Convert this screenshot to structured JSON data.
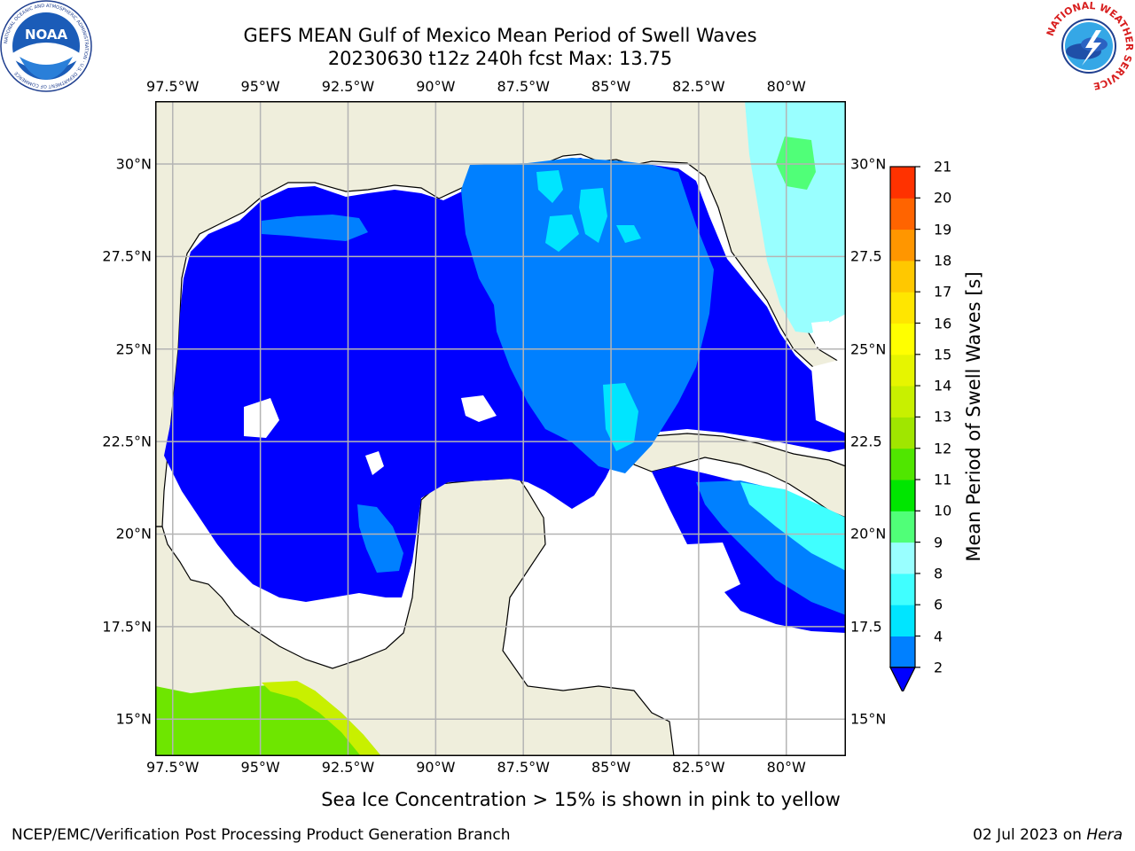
{
  "title": {
    "line1": "GEFS MEAN Gulf of Mexico Mean Period of Swell Waves",
    "line2": "20230630 t12z 240h fcst   Max: 13.75"
  },
  "axes": {
    "lon_labels": [
      "97.5°W",
      "95°W",
      "92.5°W",
      "90°W",
      "87.5°W",
      "85°W",
      "82.5°W",
      "80°W"
    ],
    "lat_labels_left": [
      "30°N",
      "27.5°N",
      "25°N",
      "22.5°N",
      "20°N",
      "17.5°N",
      "15°N"
    ],
    "lat_labels_right": [
      "30°N",
      "27.5",
      "25°N",
      "22.5",
      "20°N",
      "17.5",
      "15°N"
    ],
    "lon_values": [
      -97.5,
      -95,
      -92.5,
      -90,
      -87.5,
      -85,
      -82.5,
      -80
    ],
    "lat_values": [
      30,
      27.5,
      25,
      22.5,
      20,
      17.5,
      15
    ],
    "lon_range": [
      -98,
      -78.3
    ],
    "lat_range": [
      14,
      31.7
    ],
    "grid": true
  },
  "colorbar": {
    "title": "Mean Period of Swell Waves [s]",
    "levels": [
      "2",
      "4",
      "6",
      "8",
      "9",
      "10",
      "11",
      "12",
      "13",
      "14",
      "15",
      "16",
      "17",
      "18",
      "19",
      "20",
      "21"
    ],
    "colors": [
      "#0080ff",
      "#00e5ff",
      "#40ffff",
      "#99ffff",
      "#50ff78",
      "#00e600",
      "#50e600",
      "#a0e600",
      "#c8f000",
      "#e6f500",
      "#ffff00",
      "#ffe600",
      "#ffc800",
      "#ff9600",
      "#ff6400",
      "#ff3200"
    ],
    "under_color": "#0000ff"
  },
  "colors": {
    "land": "#efeedc",
    "ocean_low": "#0000ff",
    "ocean_2_4": "#0080ff",
    "ocean_4_6": "#00e5ff",
    "ocean_8_9": "#99ffff",
    "ocean_9_10": "#50ff78",
    "pacific_green": "#6ee600",
    "pacific_yellow": "#c8f000"
  },
  "footnote": "Sea Ice Concentration > 15% is shown in pink to yellow",
  "credit": "NCEP/EMC/Verification Post Processing Product Generation Branch",
  "date": {
    "text": "02 Jul 2023 on ",
    "host": "Hera"
  },
  "logos": {
    "left": {
      "icon": "noaa-logo-icon",
      "text": "NOAA",
      "ring": "NATIONAL OCEANIC AND ATMOSPHERIC ADMINISTRATION · U.S. DEPARTMENT OF COMMERCE"
    },
    "right": {
      "icon": "nws-logo-icon",
      "ring": "NATIONAL WEATHER SERVICE"
    }
  }
}
